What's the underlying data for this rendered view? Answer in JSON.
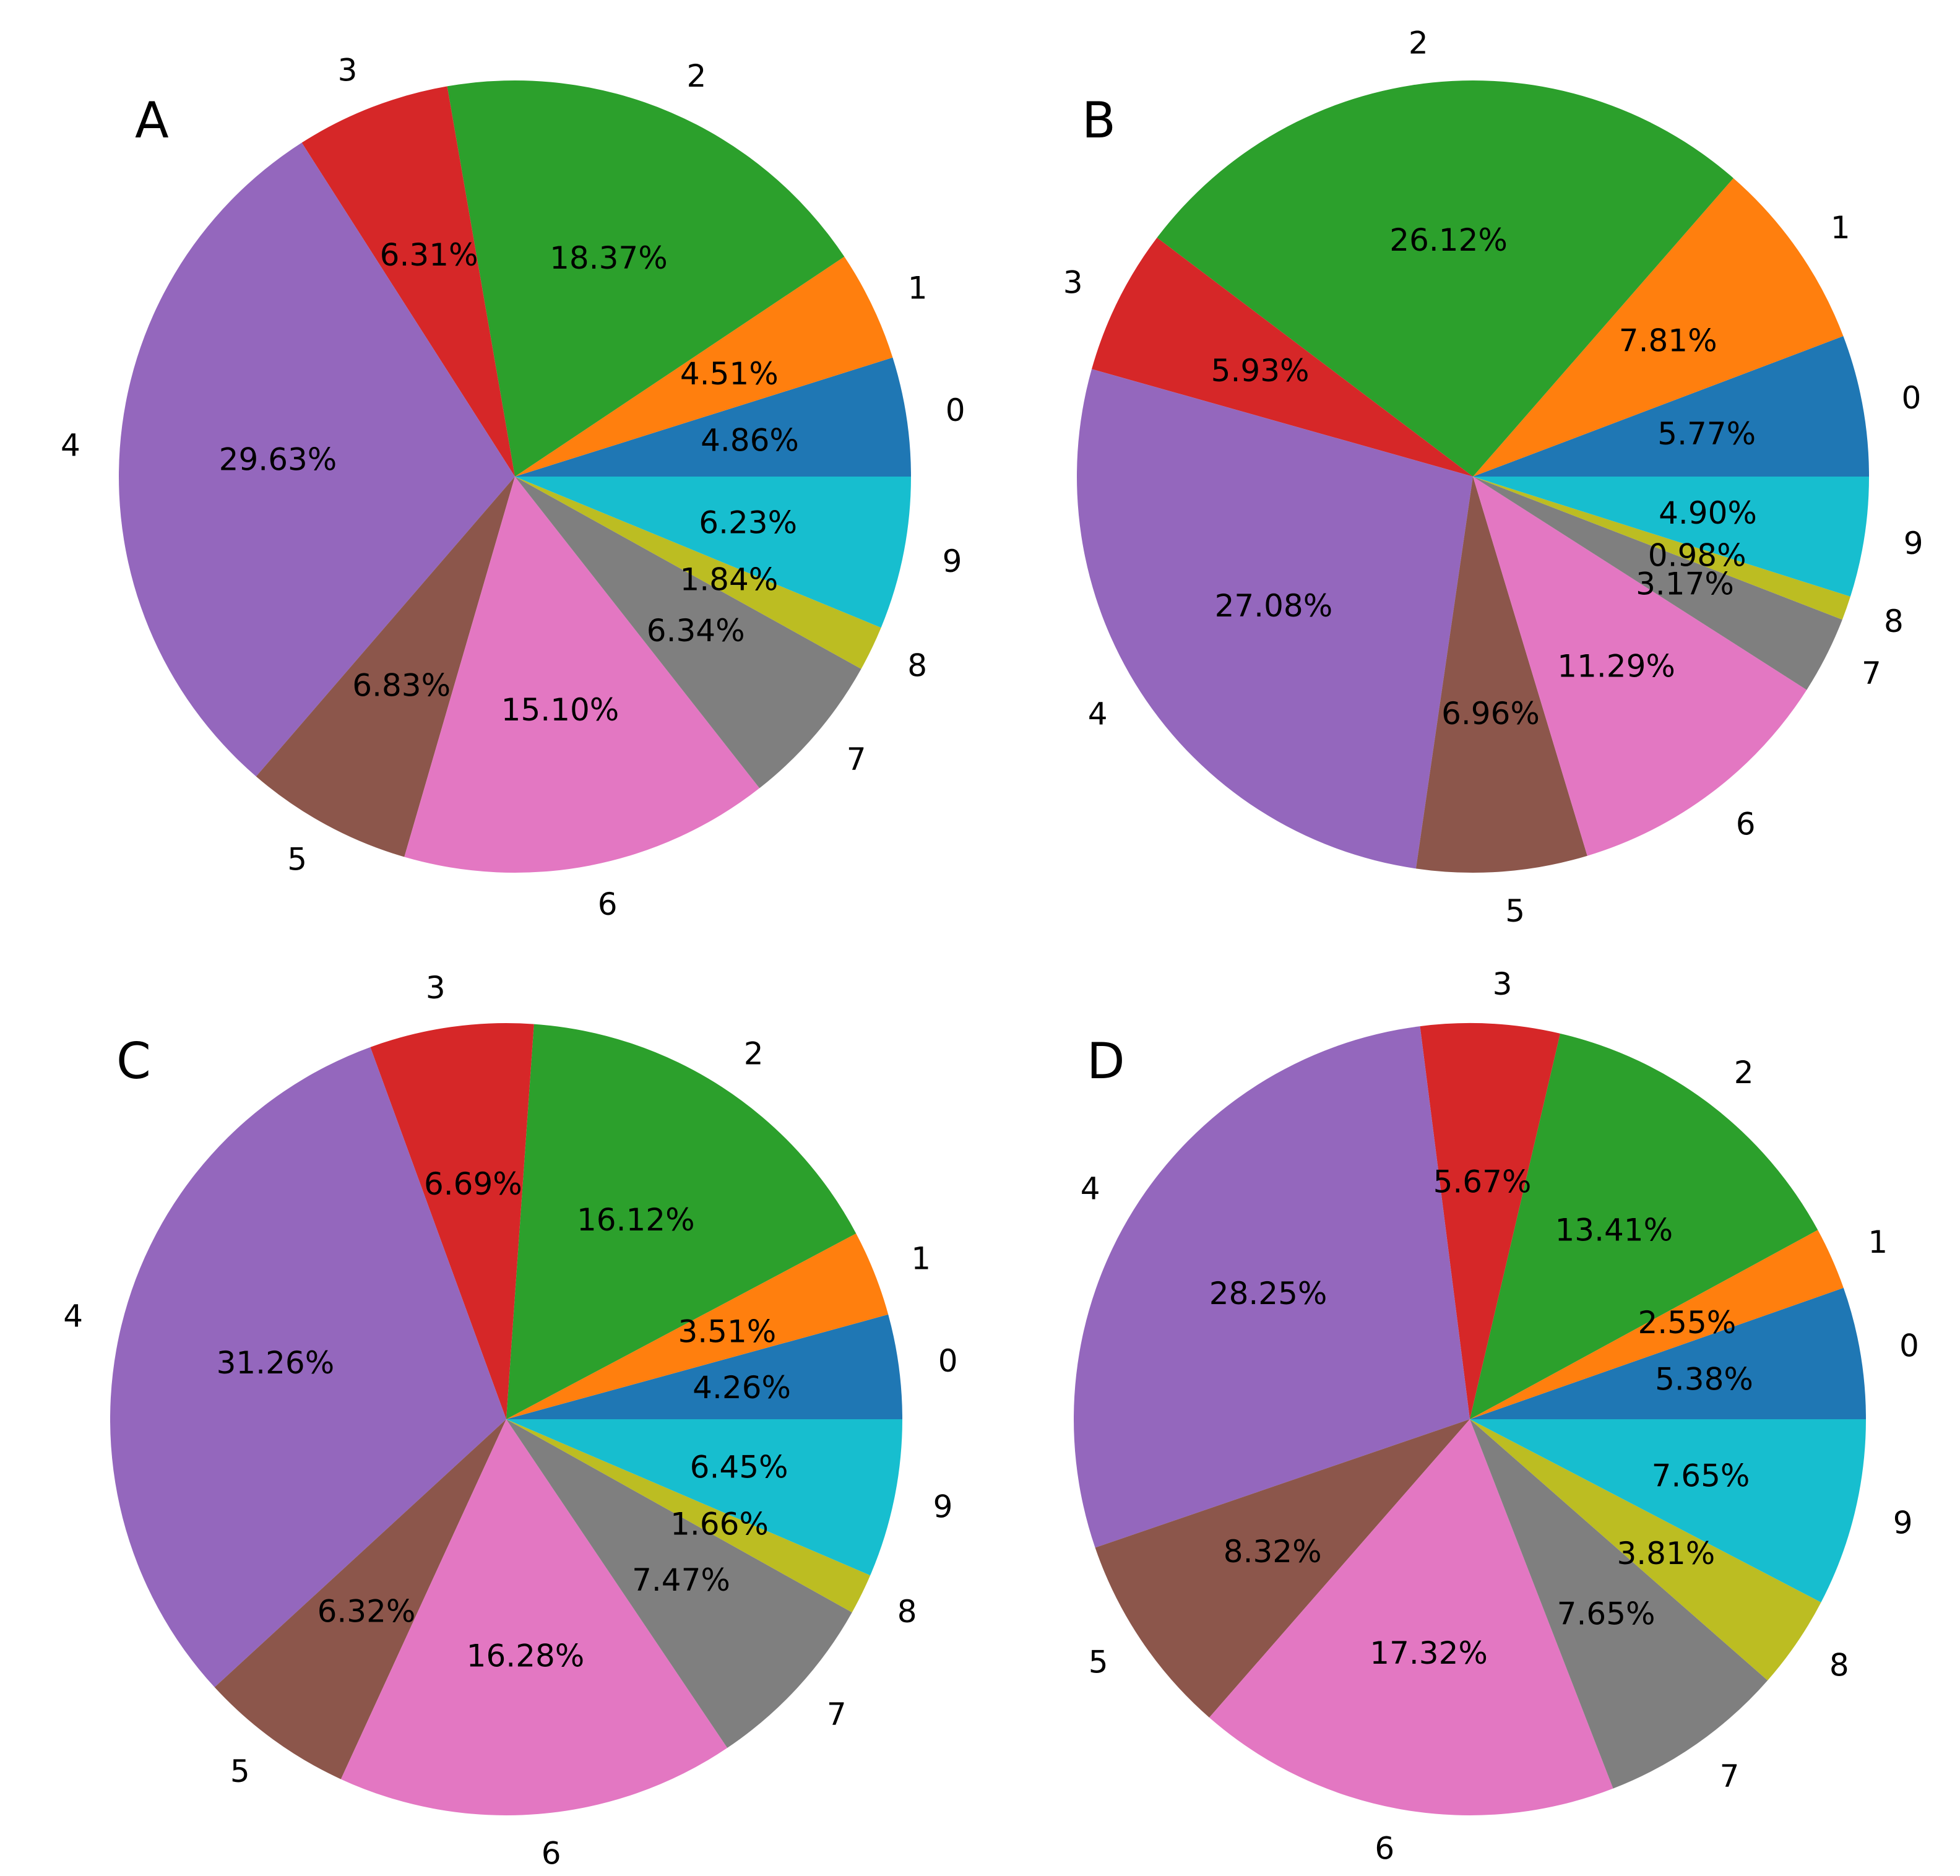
{
  "colors": [
    "#1f77b4",
    "#ff7f0e",
    "#2ca02c",
    "#d62728",
    "#9467bd",
    "#8c564b",
    "#e377c2",
    "#7f7f7f",
    "#bcbd22",
    "#17becf"
  ],
  "chart_data": [
    {
      "type": "pie",
      "title": "A",
      "labels": [
        "0",
        "1",
        "2",
        "3",
        "4",
        "5",
        "6",
        "7",
        "8",
        "9"
      ],
      "values": [
        4.86,
        4.51,
        18.37,
        6.31,
        29.63,
        6.83,
        15.1,
        6.34,
        1.84,
        6.23
      ],
      "value_labels": [
        "4.86%",
        "4.51%",
        "18.37%",
        "6.31%",
        "29.63%",
        "6.83%",
        "15.10%",
        "6.34%",
        "1.84%",
        "6.23%"
      ]
    },
    {
      "type": "pie",
      "title": "B",
      "labels": [
        "0",
        "1",
        "2",
        "3",
        "4",
        "5",
        "6",
        "7",
        "8",
        "9"
      ],
      "values": [
        5.77,
        7.81,
        26.12,
        5.93,
        27.08,
        6.96,
        11.29,
        3.17,
        0.98,
        4.9
      ],
      "value_labels": [
        "5.77%",
        "7.81%",
        "26.12%",
        "5.93%",
        "27.08%",
        "6.96%",
        "11.29%",
        "3.17%",
        "0.98%",
        "4.90%"
      ]
    },
    {
      "type": "pie",
      "title": "C",
      "labels": [
        "0",
        "1",
        "2",
        "3",
        "4",
        "5",
        "6",
        "7",
        "8",
        "9"
      ],
      "values": [
        4.26,
        3.51,
        16.12,
        6.69,
        31.26,
        6.32,
        16.28,
        7.47,
        1.66,
        6.45
      ],
      "value_labels": [
        "4.26%",
        "3.51%",
        "16.12%",
        "6.69%",
        "31.26%",
        "6.32%",
        "16.28%",
        "7.47%",
        "1.66%",
        "6.45%"
      ]
    },
    {
      "type": "pie",
      "title": "D",
      "labels": [
        "0",
        "1",
        "2",
        "3",
        "4",
        "5",
        "6",
        "7",
        "8",
        "9"
      ],
      "values": [
        5.38,
        2.55,
        13.41,
        5.67,
        28.25,
        8.32,
        17.32,
        7.65,
        3.81,
        7.65
      ],
      "value_labels": [
        "5.38%",
        "2.55%",
        "13.41%",
        "5.67%",
        "28.25%",
        "8.32%",
        "17.32%",
        "7.65%",
        "3.81%",
        "7.65%"
      ]
    }
  ]
}
